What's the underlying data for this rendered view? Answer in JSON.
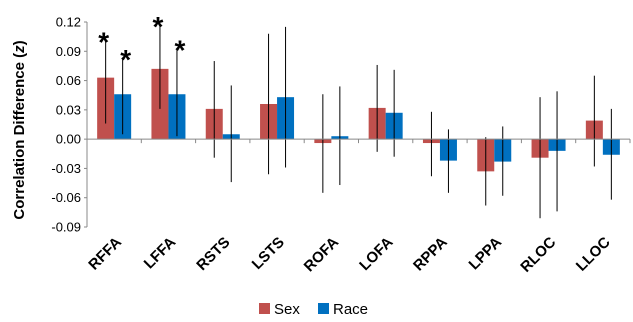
{
  "chart_data": {
    "type": "bar",
    "ylabel": "Correlation Difference (z)",
    "ylabel_main": "Correlation Difference (",
    "ylabel_italic": "z",
    "ylabel_close": ")",
    "ylim": [
      -0.09,
      0.12
    ],
    "yticks": [
      -0.09,
      -0.06,
      -0.03,
      0.0,
      0.03,
      0.06,
      0.09,
      0.12
    ],
    "ytick_labels": [
      "-0.09",
      "-0.06",
      "-0.03",
      "0.00",
      "0.03",
      "0.06",
      "0.09",
      "0.12"
    ],
    "categories": [
      "RFFA",
      "LFFA",
      "RSTS",
      "LSTS",
      "ROFA",
      "LOFA",
      "RPPA",
      "LPPA",
      "RLOC",
      "LLOC"
    ],
    "series": [
      {
        "name": "Sex",
        "color": "#c0504d",
        "values": [
          0.063,
          0.072,
          0.031,
          0.036,
          -0.004,
          0.032,
          -0.004,
          -0.033,
          -0.019,
          0.019
        ],
        "err_low": [
          0.016,
          0.031,
          -0.019,
          -0.036,
          -0.055,
          -0.013,
          -0.038,
          -0.068,
          -0.081,
          -0.028
        ],
        "err_high": [
          0.1,
          0.116,
          0.08,
          0.108,
          0.046,
          0.076,
          0.028,
          0.002,
          0.043,
          0.065
        ],
        "significant": [
          true,
          true,
          false,
          false,
          false,
          false,
          false,
          false,
          false,
          false
        ]
      },
      {
        "name": "Race",
        "color": "#0070c0",
        "values": [
          0.046,
          0.046,
          0.005,
          0.043,
          0.003,
          0.027,
          -0.022,
          -0.023,
          -0.012,
          -0.016
        ],
        "err_low": [
          0.005,
          0.003,
          -0.044,
          -0.029,
          -0.047,
          -0.018,
          -0.055,
          -0.058,
          -0.074,
          -0.062
        ],
        "err_high": [
          0.082,
          0.092,
          0.055,
          0.115,
          0.054,
          0.071,
          0.01,
          0.013,
          0.049,
          0.031
        ],
        "significant": [
          true,
          true,
          false,
          false,
          false,
          false,
          false,
          false,
          false,
          false
        ]
      }
    ],
    "significance_marker": "*",
    "legend": {
      "placement": "bottom-center"
    },
    "grid": false
  }
}
